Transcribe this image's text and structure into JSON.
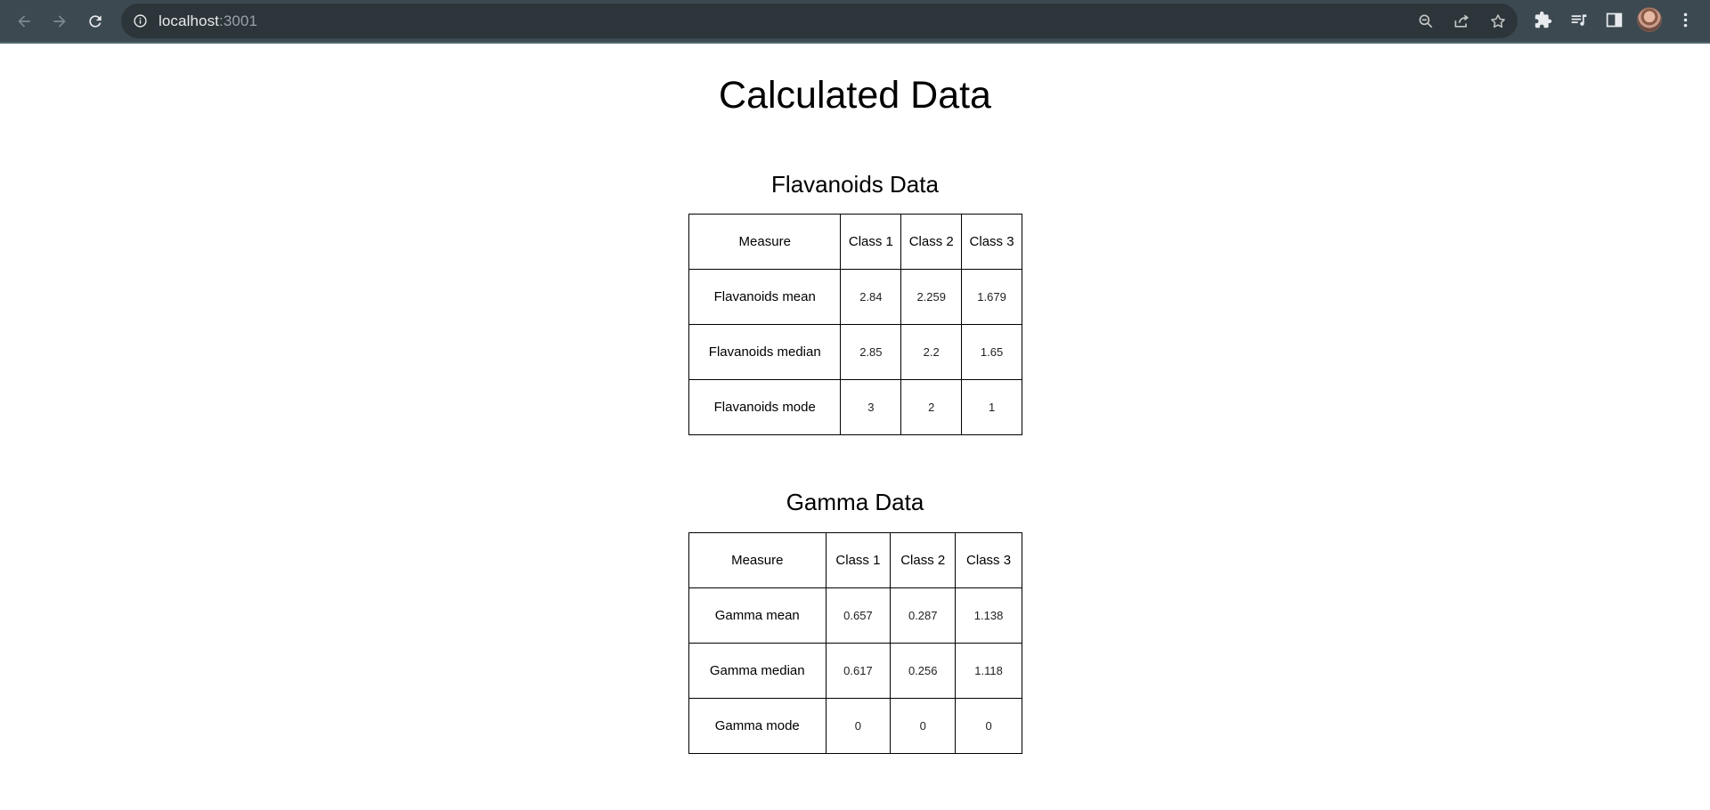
{
  "browser": {
    "url_host": "localhost",
    "url_port": ":3001"
  },
  "page": {
    "title": "Calculated Data"
  },
  "flavanoids": {
    "title": "Flavanoids Data",
    "headers": [
      "Measure",
      "Class 1",
      "Class 2",
      "Class 3"
    ],
    "rows": [
      {
        "label": "Flavanoids mean",
        "values": [
          "2.84",
          "2.259",
          "1.679"
        ]
      },
      {
        "label": "Flavanoids median",
        "values": [
          "2.85",
          "2.2",
          "1.65"
        ]
      },
      {
        "label": "Flavanoids mode",
        "values": [
          "3",
          "2",
          "1"
        ]
      }
    ]
  },
  "gamma": {
    "title": "Gamma Data",
    "headers": [
      "Measure",
      "Class 1",
      "Class 2",
      "Class 3"
    ],
    "rows": [
      {
        "label": "Gamma mean",
        "values": [
          "0.657",
          "0.287",
          "1.138"
        ]
      },
      {
        "label": "Gamma median",
        "values": [
          "0.617",
          "0.256",
          "1.118"
        ]
      },
      {
        "label": "Gamma mode",
        "values": [
          "0",
          "0",
          "0"
        ]
      }
    ]
  }
}
